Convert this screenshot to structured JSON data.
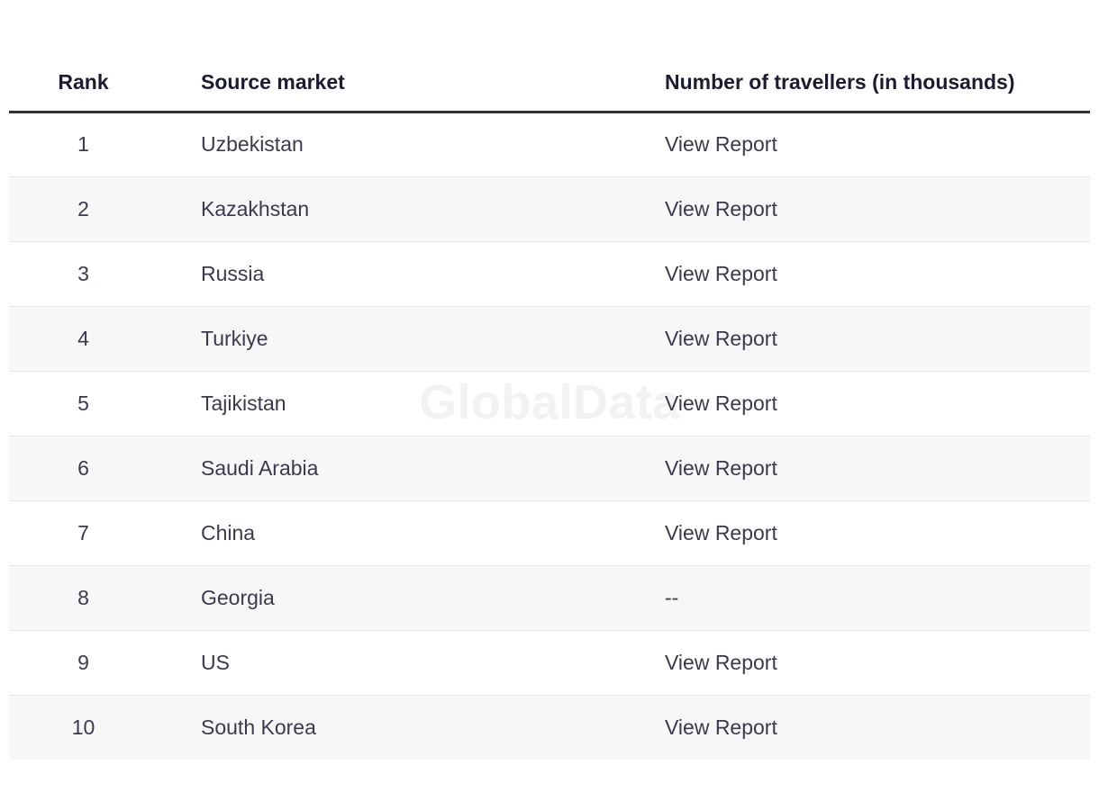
{
  "watermark": "GlobalData",
  "table": {
    "columns": [
      "Rank",
      "Source market",
      "Number of travellers (in thousands)"
    ],
    "report_link_label": "View Report",
    "empty_value": "--",
    "rows": [
      {
        "rank": "1",
        "market": "Uzbekistan",
        "value": "View Report"
      },
      {
        "rank": "2",
        "market": "Kazakhstan",
        "value": "View Report"
      },
      {
        "rank": "3",
        "market": "Russia",
        "value": "View Report"
      },
      {
        "rank": "4",
        "market": "Turkiye",
        "value": "View Report"
      },
      {
        "rank": "5",
        "market": "Tajikistan",
        "value": "View Report"
      },
      {
        "rank": "6",
        "market": "Saudi Arabia",
        "value": "View Report"
      },
      {
        "rank": "7",
        "market": "China",
        "value": "View Report"
      },
      {
        "rank": "8",
        "market": "Georgia",
        "value": "--"
      },
      {
        "rank": "9",
        "market": "US",
        "value": "View Report"
      },
      {
        "rank": "10",
        "market": "South Korea",
        "value": "View Report"
      }
    ]
  },
  "colors": {
    "header_text": "#1b1b31",
    "cell_text": "#3a3a4e",
    "header_rule": "#303030",
    "row_stripe": "#f7f7f7",
    "row_divider": "#e4e4e4",
    "watermark": "#f2f2f2",
    "background": "#ffffff"
  }
}
